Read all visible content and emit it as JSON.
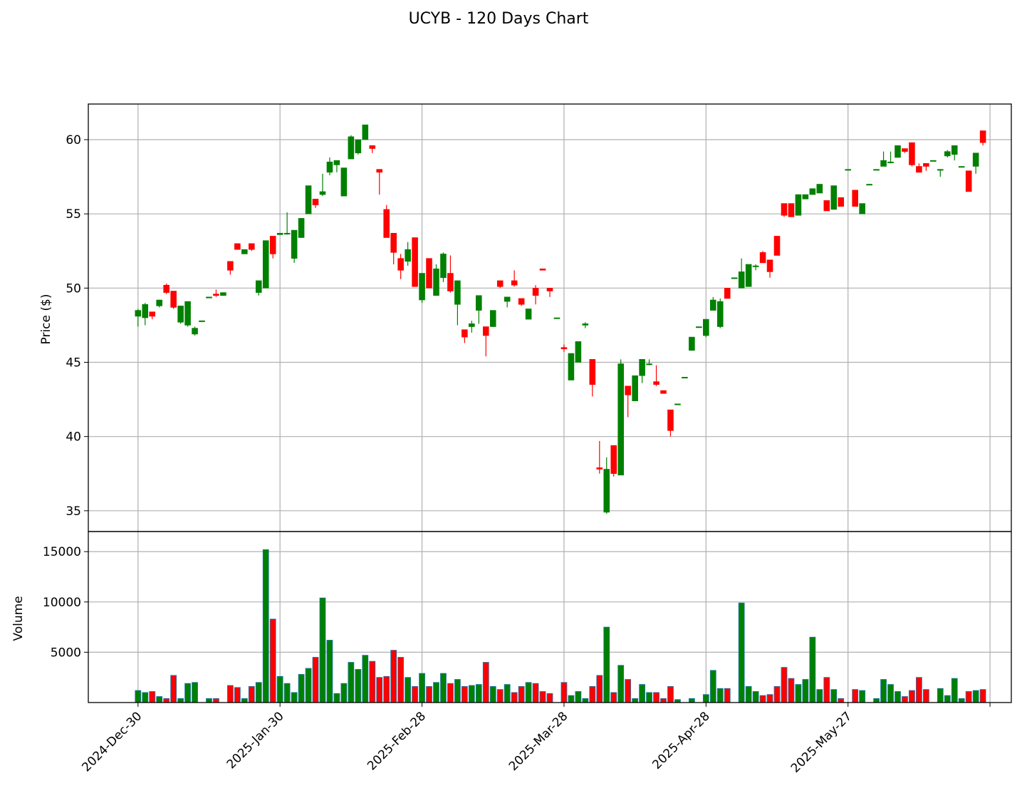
{
  "chart_data": {
    "type": "candlestick",
    "title": "UCYB - 120 Days Chart",
    "ylabel": "Price ($)",
    "volume_ylabel": "Volume",
    "colors": {
      "up": "#008000",
      "down": "#ff0000",
      "volume_edge": "#1f77b4",
      "grid": "#b0b0b0"
    },
    "grid": true,
    "price_ylim": [
      33.6,
      62.4
    ],
    "price_yticks": [
      35,
      40,
      45,
      50,
      55,
      60
    ],
    "volume_ylim": [
      0,
      17000
    ],
    "volume_yticks": [
      5000,
      10000,
      15000
    ],
    "x_range": [
      -7,
      123
    ],
    "xticks": [
      {
        "label": "2024-Dec-30",
        "index": 0
      },
      {
        "label": "2025-Jan-30",
        "index": 20
      },
      {
        "label": "2025-Feb-28",
        "index": 40
      },
      {
        "label": "2025-Mar-28",
        "index": 60
      },
      {
        "label": "2025-Apr-28",
        "index": 80
      },
      {
        "label": "2025-May-27",
        "index": 100
      },
      {
        "label": "",
        "index": 120
      }
    ],
    "candles": [
      [
        48.1,
        48.6,
        47.4,
        48.5,
        1200
      ],
      [
        48.0,
        49.0,
        47.5,
        48.9,
        1000
      ],
      [
        48.4,
        48.4,
        47.9,
        48.1,
        1100
      ],
      [
        48.8,
        49.2,
        48.7,
        49.2,
        600
      ],
      [
        50.2,
        50.3,
        49.6,
        49.7,
        400
      ],
      [
        49.8,
        49.8,
        48.6,
        48.7,
        2700
      ],
      [
        47.7,
        48.8,
        47.6,
        48.8,
        400
      ],
      [
        47.5,
        49.1,
        47.4,
        49.1,
        1900
      ],
      [
        46.9,
        47.4,
        46.8,
        47.3,
        2000
      ],
      [
        47.8,
        47.8,
        47.8,
        47.8,
        0
      ],
      [
        49.4,
        49.4,
        49.4,
        49.4,
        400
      ],
      [
        49.6,
        49.9,
        49.4,
        49.5,
        400
      ],
      [
        49.5,
        49.7,
        49.5,
        49.7,
        0
      ],
      [
        51.8,
        51.8,
        50.9,
        51.2,
        1700
      ],
      [
        53.0,
        53.0,
        52.6,
        52.6,
        1500
      ],
      [
        52.3,
        52.6,
        52.3,
        52.6,
        400
      ],
      [
        53.0,
        53.0,
        52.5,
        52.6,
        1600
      ],
      [
        49.7,
        50.5,
        49.5,
        50.5,
        2000
      ],
      [
        50.0,
        53.2,
        50.0,
        53.2,
        15200
      ],
      [
        53.5,
        53.5,
        52.0,
        52.3,
        8300
      ],
      [
        53.6,
        53.7,
        53.6,
        53.7,
        2600
      ],
      [
        53.7,
        55.1,
        53.6,
        53.7,
        1900
      ],
      [
        52.0,
        53.9,
        51.7,
        53.9,
        1000
      ],
      [
        53.4,
        54.7,
        53.4,
        54.7,
        2800
      ],
      [
        55.0,
        56.9,
        55.0,
        56.9,
        3400
      ],
      [
        56.0,
        56.0,
        55.4,
        55.6,
        4500
      ],
      [
        56.3,
        57.7,
        56.2,
        56.5,
        10400
      ],
      [
        57.8,
        58.8,
        57.6,
        58.5,
        6200
      ],
      [
        58.3,
        58.6,
        57.8,
        58.6,
        900
      ],
      [
        56.2,
        58.1,
        56.2,
        58.1,
        1900
      ],
      [
        58.7,
        60.3,
        58.7,
        60.2,
        4000
      ],
      [
        59.1,
        60.0,
        59.0,
        60.0,
        3300
      ],
      [
        60.0,
        61.0,
        60.0,
        61.0,
        4700
      ],
      [
        59.6,
        59.6,
        59.1,
        59.4,
        4100
      ],
      [
        58.0,
        58.0,
        56.3,
        57.8,
        2500
      ],
      [
        55.3,
        55.6,
        53.5,
        53.4,
        2600
      ],
      [
        53.7,
        53.7,
        51.6,
        52.4,
        5200
      ],
      [
        52.0,
        52.3,
        50.6,
        51.2,
        4500
      ],
      [
        51.8,
        53.1,
        51.5,
        52.6,
        2500
      ],
      [
        53.4,
        53.4,
        50.1,
        50.1,
        1600
      ],
      [
        49.2,
        51.0,
        49.0,
        51.0,
        2900
      ],
      [
        52.0,
        52.0,
        50.0,
        50.0,
        1600
      ],
      [
        49.5,
        51.6,
        49.5,
        51.3,
        2000
      ],
      [
        50.7,
        52.4,
        50.4,
        52.3,
        2900
      ],
      [
        51.0,
        52.2,
        49.7,
        49.8,
        1900
      ],
      [
        48.9,
        50.5,
        47.5,
        50.5,
        2300
      ],
      [
        47.2,
        47.2,
        46.3,
        46.7,
        1600
      ],
      [
        47.4,
        47.8,
        47.0,
        47.6,
        1700
      ],
      [
        48.5,
        49.5,
        47.6,
        49.5,
        1800
      ],
      [
        47.4,
        47.4,
        45.4,
        46.8,
        4000
      ],
      [
        47.4,
        48.4,
        47.4,
        48.5,
        1600
      ],
      [
        50.5,
        50.5,
        50.0,
        50.1,
        1300
      ],
      [
        49.1,
        49.4,
        48.7,
        49.4,
        1800
      ],
      [
        50.5,
        51.2,
        50.1,
        50.2,
        1000
      ],
      [
        49.3,
        49.3,
        48.8,
        48.9,
        1600
      ],
      [
        47.9,
        48.6,
        47.9,
        48.6,
        2000
      ],
      [
        50.0,
        50.2,
        48.9,
        49.5,
        1900
      ],
      [
        51.3,
        51.3,
        51.2,
        51.2,
        1100
      ],
      [
        50.0,
        50.0,
        49.4,
        49.8,
        900
      ],
      [
        48.0,
        48.0,
        48.0,
        48.0,
        0
      ],
      [
        46.0,
        46.2,
        45.7,
        45.9,
        2000
      ],
      [
        43.8,
        45.6,
        43.8,
        45.6,
        700
      ],
      [
        45.0,
        46.4,
        45.0,
        46.4,
        1100
      ],
      [
        47.5,
        47.7,
        47.3,
        47.6,
        400
      ],
      [
        45.2,
        45.2,
        42.7,
        43.5,
        1600
      ],
      [
        37.9,
        39.7,
        37.5,
        37.8,
        2700
      ],
      [
        34.9,
        38.6,
        34.8,
        37.8,
        7500
      ],
      [
        39.4,
        39.4,
        37.3,
        37.5,
        1000
      ],
      [
        37.4,
        45.2,
        37.4,
        44.9,
        3700
      ],
      [
        43.4,
        43.4,
        41.3,
        42.8,
        2300
      ],
      [
        42.4,
        44.1,
        42.4,
        44.1,
        400
      ],
      [
        44.1,
        45.2,
        43.6,
        45.2,
        1800
      ],
      [
        44.9,
        45.2,
        44.8,
        44.9,
        1000
      ],
      [
        43.7,
        44.8,
        43.4,
        43.5,
        1000
      ],
      [
        43.1,
        43.1,
        42.9,
        42.9,
        400
      ],
      [
        41.8,
        41.8,
        40.0,
        40.4,
        1600
      ],
      [
        42.2,
        42.2,
        42.2,
        42.2,
        300
      ],
      [
        44.0,
        44.0,
        44.0,
        44.0,
        0
      ],
      [
        45.8,
        46.7,
        45.8,
        46.7,
        400
      ],
      [
        47.4,
        47.4,
        47.4,
        47.4,
        0
      ],
      [
        46.8,
        47.9,
        46.7,
        47.9,
        800
      ],
      [
        48.5,
        49.4,
        48.5,
        49.2,
        3200
      ],
      [
        47.4,
        49.3,
        47.3,
        49.1,
        1400
      ],
      [
        50.0,
        50.0,
        49.3,
        49.3,
        1400
      ],
      [
        50.7,
        50.7,
        50.7,
        50.7,
        0
      ],
      [
        50.0,
        52.0,
        50.0,
        51.1,
        9900
      ],
      [
        50.1,
        51.6,
        50.1,
        51.6,
        1600
      ],
      [
        51.5,
        51.6,
        51.2,
        51.5,
        1100
      ],
      [
        52.4,
        52.5,
        51.7,
        51.7,
        700
      ],
      [
        51.9,
        51.9,
        50.7,
        51.1,
        800
      ],
      [
        53.5,
        53.5,
        52.3,
        52.2,
        1600
      ],
      [
        55.7,
        55.7,
        54.8,
        54.9,
        3500
      ],
      [
        55.7,
        55.7,
        54.8,
        54.8,
        2400
      ],
      [
        54.9,
        56.3,
        54.9,
        56.3,
        1800
      ],
      [
        56.0,
        56.3,
        56.0,
        56.3,
        2300
      ],
      [
        56.3,
        56.7,
        56.3,
        56.7,
        6500
      ],
      [
        56.4,
        57.0,
        56.4,
        57.0,
        1300
      ],
      [
        55.9,
        55.9,
        55.2,
        55.2,
        2500
      ],
      [
        55.3,
        56.9,
        55.3,
        56.9,
        1300
      ],
      [
        56.1,
        56.1,
        55.5,
        55.5,
        400
      ],
      [
        58.0,
        58.0,
        58.0,
        58.0,
        0
      ],
      [
        56.6,
        56.6,
        55.5,
        55.5,
        1300
      ],
      [
        55.0,
        55.7,
        55.0,
        55.7,
        1200
      ],
      [
        57.0,
        57.0,
        57.0,
        57.0,
        0
      ],
      [
        58.0,
        58.0,
        58.0,
        58.0,
        400
      ],
      [
        58.2,
        59.2,
        58.2,
        58.6,
        2300
      ],
      [
        58.5,
        59.2,
        58.4,
        58.5,
        1800
      ],
      [
        58.8,
        59.6,
        58.8,
        59.6,
        1100
      ],
      [
        59.4,
        59.4,
        59.1,
        59.2,
        600
      ],
      [
        59.8,
        59.8,
        58.2,
        58.3,
        1200
      ],
      [
        58.2,
        58.4,
        57.8,
        57.8,
        2500
      ],
      [
        58.4,
        58.4,
        57.9,
        58.2,
        1300
      ],
      [
        58.6,
        58.6,
        58.6,
        58.6,
        0
      ],
      [
        58.0,
        58.0,
        57.5,
        58.0,
        1400
      ],
      [
        58.9,
        59.3,
        58.8,
        59.2,
        700
      ],
      [
        59.0,
        59.6,
        58.6,
        59.6,
        2400
      ],
      [
        58.2,
        58.2,
        58.2,
        58.2,
        400
      ],
      [
        57.9,
        57.9,
        56.5,
        56.5,
        1100
      ],
      [
        58.2,
        59.1,
        57.7,
        59.1,
        1200
      ],
      [
        60.6,
        60.6,
        59.6,
        59.8,
        1300
      ]
    ]
  }
}
